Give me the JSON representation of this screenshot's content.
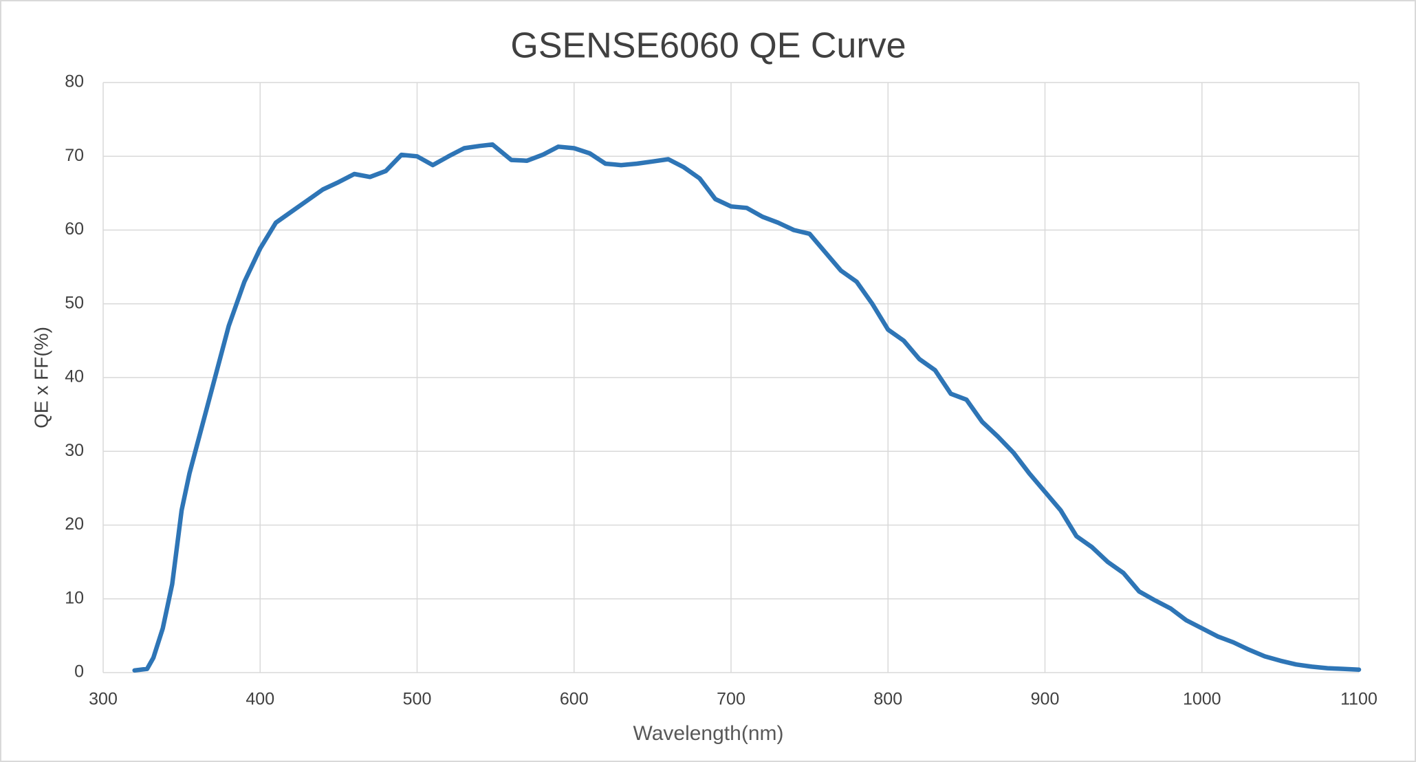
{
  "chart_data": {
    "type": "line",
    "title": "GSENSE6060 QE  Curve",
    "x_label": "Wavelength(nm)",
    "y_label": "QE x FF(%)",
    "x": [
      320,
      328,
      332,
      338,
      344,
      350,
      355,
      360,
      370,
      380,
      390,
      400,
      410,
      420,
      430,
      440,
      450,
      460,
      470,
      480,
      490,
      500,
      510,
      520,
      530,
      540,
      548,
      560,
      570,
      580,
      590,
      600,
      610,
      620,
      630,
      640,
      650,
      660,
      670,
      680,
      690,
      700,
      710,
      720,
      730,
      740,
      750,
      760,
      770,
      780,
      790,
      800,
      810,
      820,
      830,
      840,
      850,
      860,
      870,
      880,
      890,
      900,
      910,
      920,
      930,
      940,
      950,
      960,
      970,
      980,
      990,
      1000,
      1010,
      1020,
      1030,
      1040,
      1050,
      1060,
      1070,
      1080,
      1090,
      1100
    ],
    "series": [
      {
        "name": "QE",
        "color": "#2e75b6",
        "values": [
          0.3,
          0.5,
          2,
          6,
          12,
          22,
          27,
          31,
          39,
          47,
          53,
          57.5,
          61,
          62.5,
          64,
          65.5,
          66.5,
          67.6,
          67.2,
          68,
          70.2,
          70,
          68.8,
          70,
          71.1,
          71.4,
          71.6,
          69.5,
          69.4,
          70.2,
          71.3,
          71.1,
          70.4,
          69,
          68.8,
          69,
          69.3,
          69.6,
          68.5,
          67,
          64.2,
          63.2,
          63,
          61.8,
          61,
          60,
          59.5,
          57,
          54.5,
          53,
          50,
          46.5,
          45,
          42.5,
          41,
          37.8,
          37,
          34,
          32,
          29.8,
          27,
          24.5,
          22,
          18.5,
          17,
          15,
          13.5,
          11,
          9.8,
          8.7,
          7.1,
          6,
          4.9,
          4.1,
          3.1,
          2.2,
          1.6,
          1.1,
          0.8,
          0.6,
          0.5,
          0.4
        ]
      }
    ],
    "xlim": [
      300,
      1100
    ],
    "xticks": [
      300,
      400,
      500,
      600,
      700,
      800,
      900,
      1000,
      1100
    ],
    "ylim": [
      0,
      80
    ],
    "yticks": [
      0,
      10,
      20,
      30,
      40,
      50,
      60,
      70,
      80
    ],
    "grid": true
  }
}
